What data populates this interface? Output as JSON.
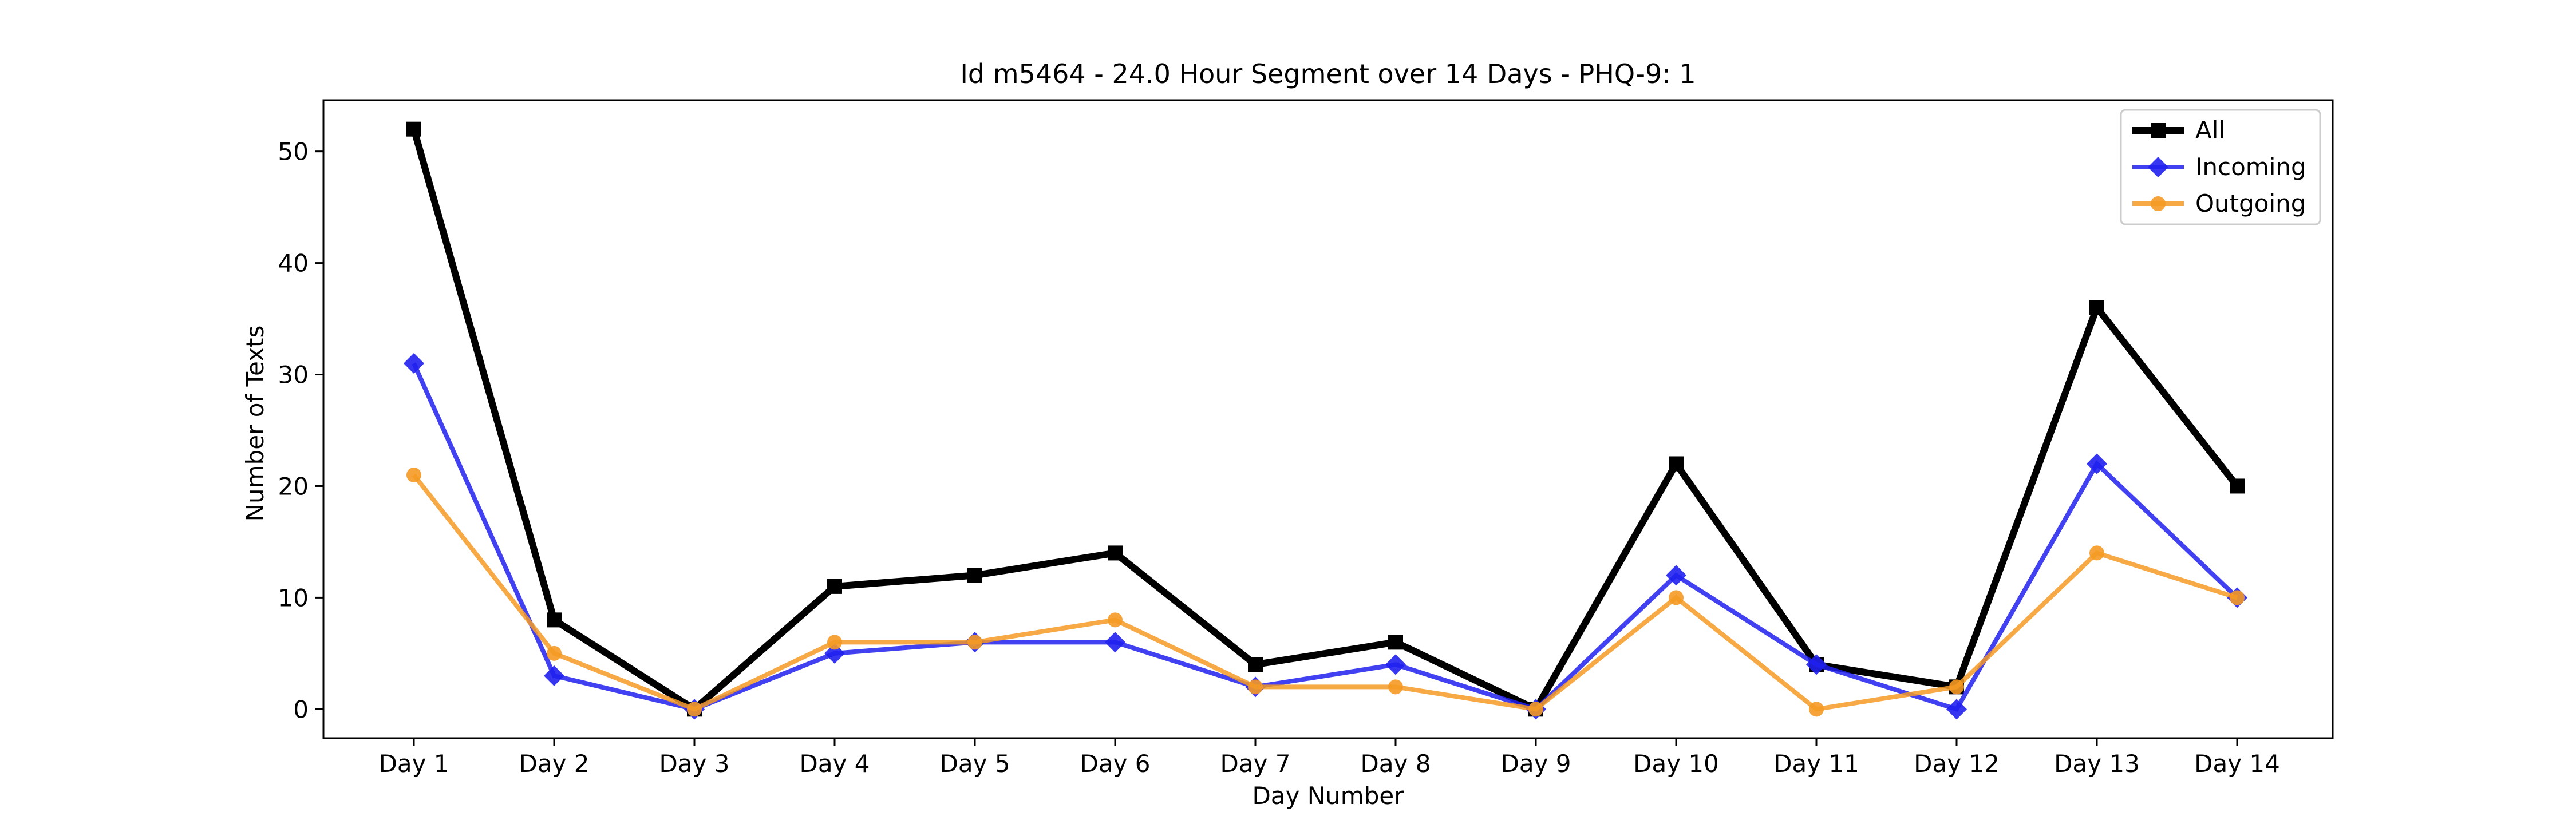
{
  "chart_data": {
    "type": "line",
    "title": "Id m5464 - 24.0 Hour Segment over 14 Days - PHQ-9: 1",
    "xlabel": "Day Number",
    "ylabel": "Number of Texts",
    "categories": [
      "Day 1",
      "Day 2",
      "Day 3",
      "Day 4",
      "Day 5",
      "Day 6",
      "Day 7",
      "Day 8",
      "Day 9",
      "Day 10",
      "Day 11",
      "Day 12",
      "Day 13",
      "Day 14"
    ],
    "yticks": [
      0,
      10,
      20,
      30,
      40,
      50
    ],
    "ylim": [
      -2.6,
      54.6
    ],
    "grid": false,
    "legend_position": "top-right",
    "series": [
      {
        "name": "All",
        "color": "#000000",
        "marker": "square",
        "values": [
          52,
          8,
          0,
          11,
          12,
          14,
          4,
          6,
          0,
          22,
          4,
          2,
          36,
          20
        ]
      },
      {
        "name": "Incoming",
        "color": "#2020f0",
        "marker": "diamond",
        "values": [
          31,
          3,
          0,
          5,
          6,
          6,
          2,
          4,
          0,
          12,
          4,
          0,
          22,
          10
        ]
      },
      {
        "name": "Outgoing",
        "color": "#f59a23",
        "marker": "circle",
        "values": [
          21,
          5,
          0,
          6,
          6,
          8,
          2,
          2,
          0,
          10,
          0,
          2,
          14,
          10
        ]
      }
    ]
  }
}
